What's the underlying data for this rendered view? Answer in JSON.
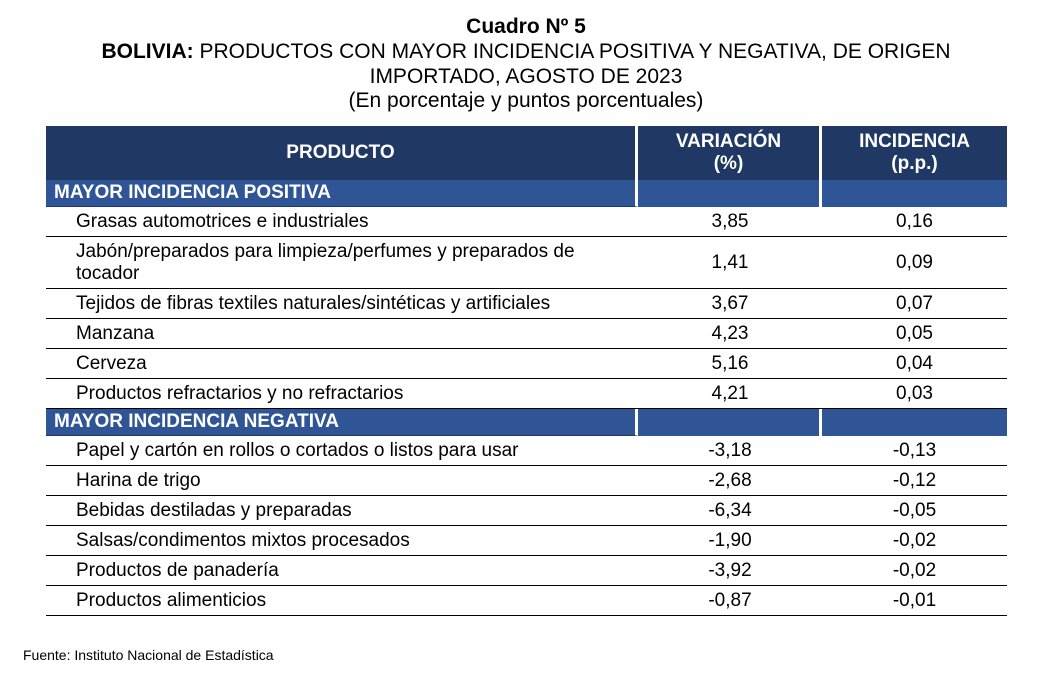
{
  "title": {
    "line1": "Cuadro Nº 5",
    "line2_bold": "BOLIVIA:",
    "line2_rest": " PRODUCTOS CON MAYOR INCIDENCIA POSITIVA Y NEGATIVA, DE ORIGEN",
    "line3": "IMPORTADO, AGOSTO DE 2023",
    "line4": "(En porcentaje y puntos porcentuales)"
  },
  "table": {
    "headers": {
      "product": "PRODUCTO",
      "variation_1": "VARIACIÓN",
      "variation_2": "(%)",
      "incidence_1": "INCIDENCIA",
      "incidence_2": "(p.p.)"
    },
    "positive": {
      "label": "MAYOR INCIDENCIA POSITIVA",
      "rows": [
        {
          "product": "Grasas automotrices e industriales",
          "variation": "3,85",
          "incidence": "0,16"
        },
        {
          "product": "Jabón/preparados para limpieza/perfumes y preparados de tocador",
          "variation": "1,41",
          "incidence": "0,09"
        },
        {
          "product": "Tejidos de fibras textiles naturales/sintéticas y artificiales",
          "variation": "3,67",
          "incidence": "0,07"
        },
        {
          "product": "Manzana",
          "variation": "4,23",
          "incidence": "0,05"
        },
        {
          "product": "Cerveza",
          "variation": "5,16",
          "incidence": "0,04"
        },
        {
          "product": "Productos refractarios y no refractarios",
          "variation": "4,21",
          "incidence": "0,03"
        }
      ]
    },
    "negative": {
      "label": "MAYOR INCIDENCIA NEGATIVA",
      "rows": [
        {
          "product": "Papel y cartón en rollos o cortados o listos para usar",
          "variation": "-3,18",
          "incidence": "-0,13"
        },
        {
          "product": "Harina de trigo",
          "variation": "-2,68",
          "incidence": "-0,12"
        },
        {
          "product": "Bebidas destiladas y preparadas",
          "variation": "-6,34",
          "incidence": "-0,05"
        },
        {
          "product": "Salsas/condimentos mixtos procesados",
          "variation": "-1,90",
          "incidence": "-0,02"
        },
        {
          "product": "Productos de panadería",
          "variation": "-3,92",
          "incidence": "-0,02"
        },
        {
          "product": "Productos alimenticios",
          "variation": "-0,87",
          "incidence": "-0,01"
        }
      ]
    }
  },
  "footer": "Fuente: Instituto Nacional de Estadística",
  "colors": {
    "header_bg": "#1f3864",
    "section_bg": "#2f5597"
  }
}
